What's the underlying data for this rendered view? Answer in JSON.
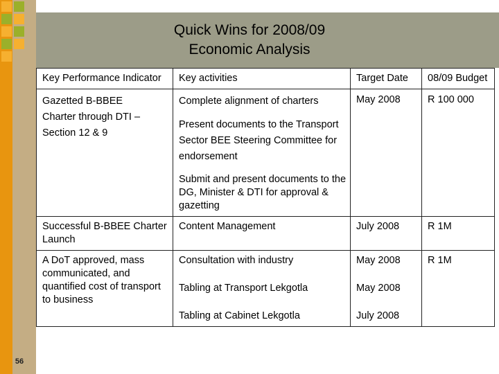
{
  "title": {
    "line1": "Quick Wins for 2008/09",
    "line2": "Economic Analysis"
  },
  "table": {
    "headers": {
      "kpi": "Key Performance Indicator",
      "activities": "Key activities",
      "target_date": "Target Date",
      "budget": "08/09 Budget"
    },
    "rows": [
      {
        "kpi": "Gazetted B-BBEE Charter through DTI –Section 12 & 9",
        "activities": [
          "Complete alignment of charters",
          "Present documents to the Transport Sector BEE Steering Committee for endorsement",
          "Submit and present documents to the DG, Minister & DTI for approval & gazetting"
        ],
        "dates": [
          "May 2008"
        ],
        "budget": "R 100 000"
      },
      {
        "kpi": "Successful B-BBEE Charter Launch",
        "activities": [
          "Content Management"
        ],
        "dates": [
          "July 2008"
        ],
        "budget": "R 1M"
      },
      {
        "kpi": "A DoT approved, mass communicated, and quantified cost of transport to business",
        "activities": [
          "Consultation with industry",
          "Tabling at Transport Lekgotla",
          "Tabling at Cabinet Lekgotla"
        ],
        "dates": [
          "May 2008",
          "May 2008",
          "July 2008"
        ],
        "budget": "R 1M"
      }
    ]
  },
  "slide_number": "56",
  "colors": {
    "accent_orange": "#e8950f",
    "accent_tan": "#c4ad84",
    "header_band": "#9c9c88",
    "square_green": "#9bb02a"
  }
}
